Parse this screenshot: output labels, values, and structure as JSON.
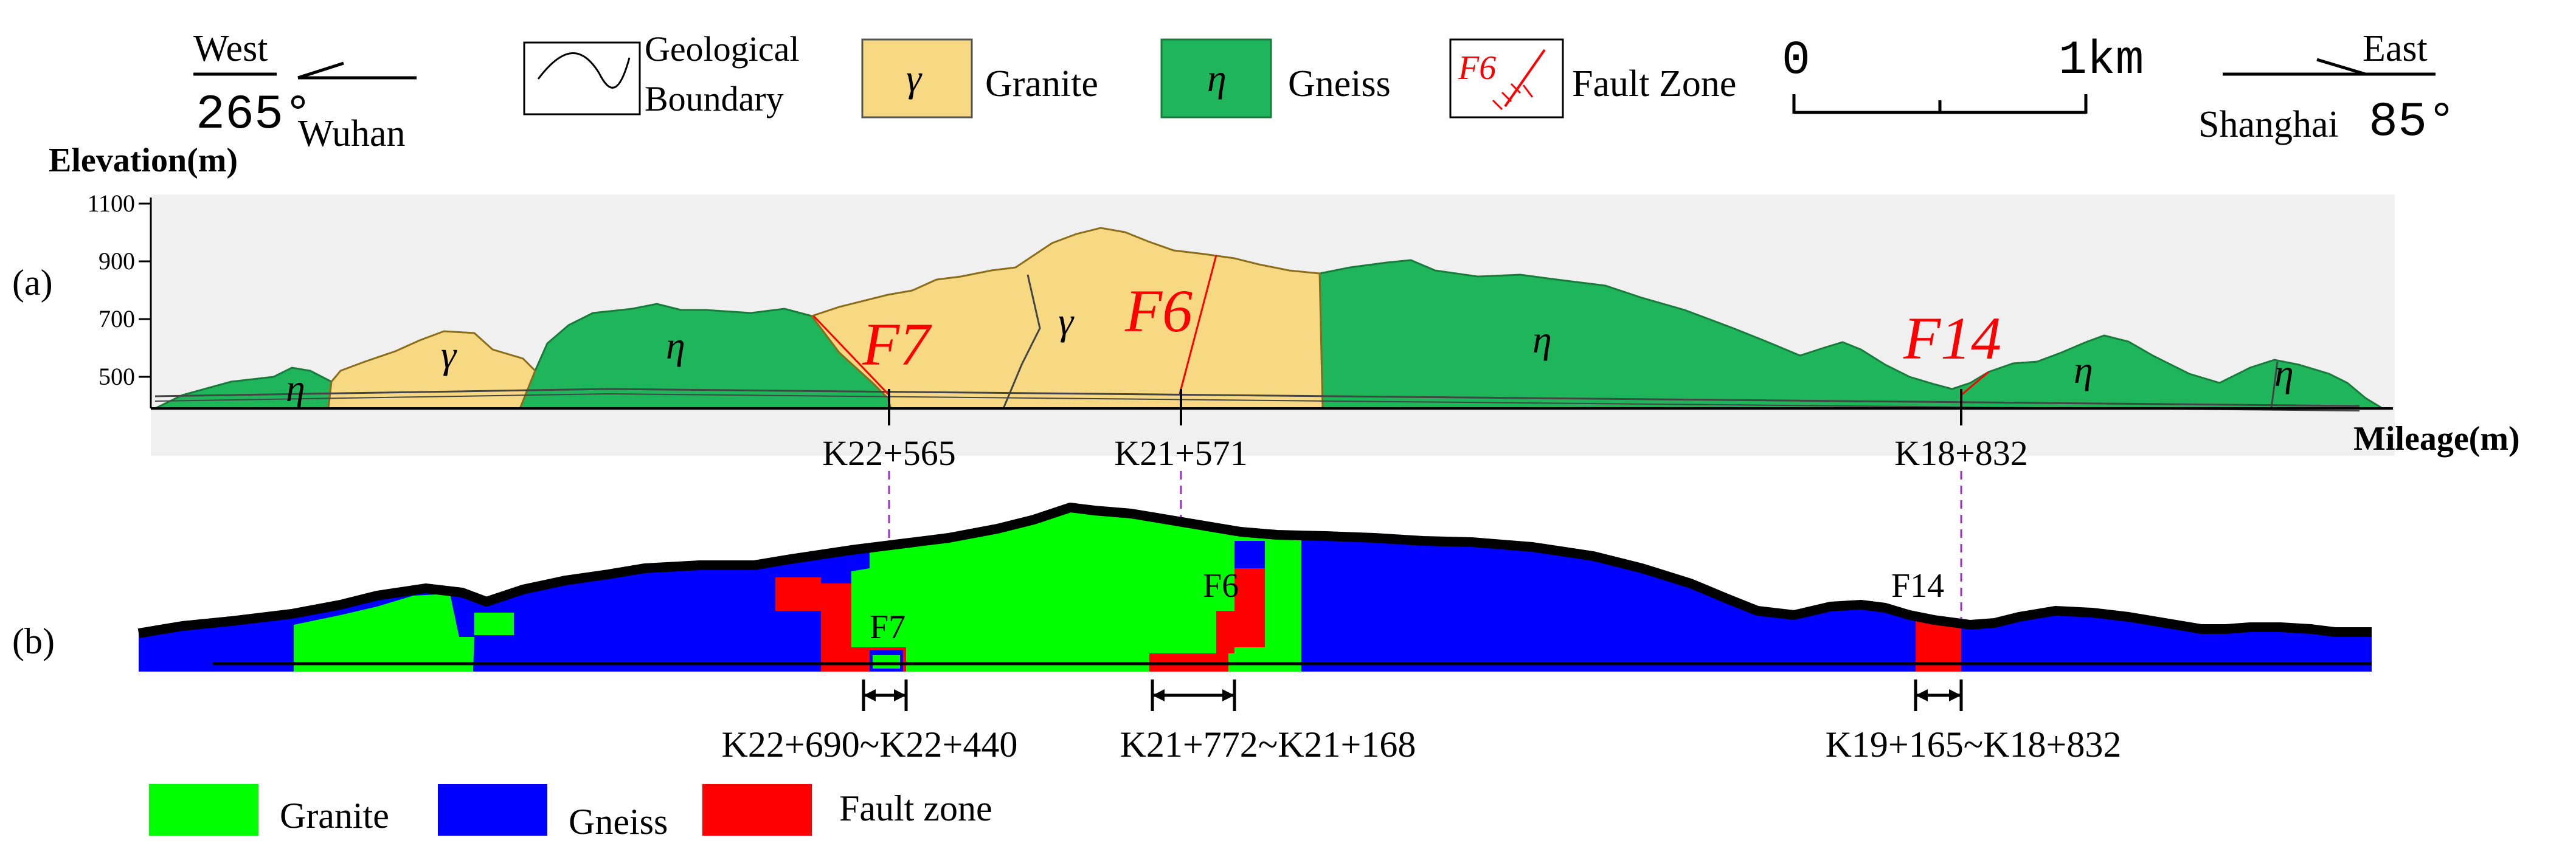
{
  "legend_top": {
    "west": {
      "direction": "West",
      "angle": "265°",
      "city": "Wuhan"
    },
    "east": {
      "direction": "East",
      "angle": "85°",
      "city": "Shanghai"
    },
    "boundary": "Geological Boundary",
    "boundary_line1": "Geological",
    "boundary_line2": "Boundary",
    "granite": {
      "symbol": "γ",
      "label": "Granite",
      "color": "#f8d983"
    },
    "gneiss": {
      "symbol": "η",
      "label": "Gneiss",
      "color": "#1fb55b"
    },
    "fault": {
      "symbol": "F6",
      "label": "Fault Zone",
      "color": "#ff0000"
    },
    "scale": {
      "start": "0",
      "end": "1km"
    }
  },
  "panel_a": {
    "label": "(a)",
    "y_axis_title": "Elevation(m)",
    "x_axis_title": "Mileage(m)",
    "y_ticks": [
      "1100",
      "900",
      "700",
      "500"
    ],
    "faults": [
      "F7",
      "F6",
      "F14"
    ],
    "unit_symbols": {
      "granite": "γ",
      "gneiss": "η"
    },
    "mileage_marks": [
      "K22+565",
      "K21+571",
      "K18+832"
    ]
  },
  "panel_b": {
    "label": "(b)",
    "faults": [
      "F7",
      "F6",
      "F14"
    ],
    "ranges": [
      "K22+690~K22+440",
      "K21+772~K21+168",
      "K19+165~K18+832"
    ],
    "colors": {
      "granite": "#00ff00",
      "gneiss": "#0000ff",
      "fault": "#ff0000"
    }
  },
  "legend_bottom": {
    "granite": "Granite",
    "gneiss": "Gneiss",
    "fault": "Fault zone"
  }
}
